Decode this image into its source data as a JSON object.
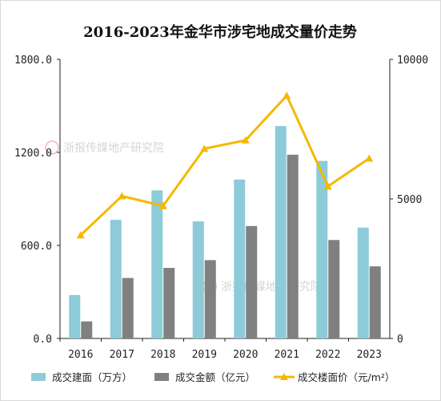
{
  "chart_data": {
    "type": "bar",
    "title": "2016-2023年金华市涉宅地成交量价走势",
    "categories": [
      "2016",
      "2017",
      "2018",
      "2019",
      "2020",
      "2021",
      "2022",
      "2023"
    ],
    "series": [
      {
        "name": "成交建面（万方）",
        "type": "bar",
        "axis": "left",
        "color": "#8ecbd8",
        "values": [
          280,
          765,
          955,
          755,
          1025,
          1370,
          1145,
          715
        ]
      },
      {
        "name": "成交金额（亿元）",
        "type": "bar",
        "axis": "left",
        "color": "#808080",
        "values": [
          110,
          390,
          455,
          505,
          725,
          1185,
          635,
          465
        ]
      },
      {
        "name": "成交楼面价（元/m²）",
        "type": "line",
        "axis": "right",
        "color": "#f5b800",
        "values": [
          3700,
          5100,
          4750,
          6800,
          7100,
          8700,
          5450,
          6450
        ]
      }
    ],
    "y_left": {
      "min": 0,
      "max": 1800,
      "ticks": [
        "0.0",
        "600.0",
        "1200.0",
        "1800.0"
      ]
    },
    "y_right": {
      "min": 0,
      "max": 10000,
      "ticks": [
        "0",
        "5000",
        "10000"
      ]
    },
    "grid": false,
    "legend_position": "bottom"
  },
  "watermark": {
    "text": "浙报传媒地产研究院"
  }
}
